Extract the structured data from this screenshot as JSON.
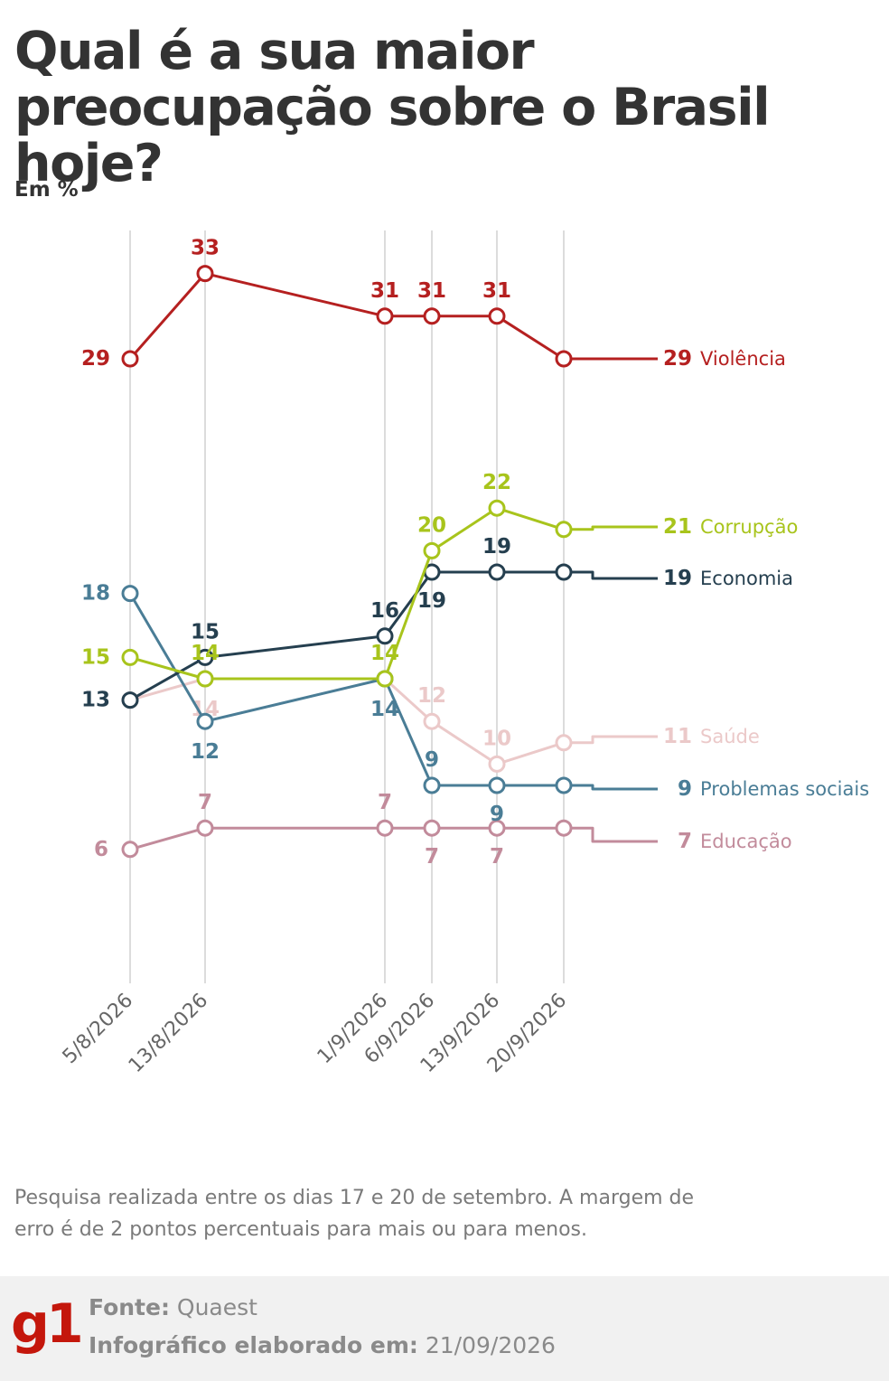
{
  "title": "Qual é a sua maior preocupação sobre o Brasil hoje?",
  "unit": "Em %",
  "note": "Pesquisa realizada entre os dias 17 e 20 de setembro. A margem de erro é de 2 pontos percentuais para mais ou para menos.",
  "footer": {
    "logo": "g1",
    "source_label": "Fonte:",
    "source": "Quaest",
    "made_label": "Infográfico elaborado em:",
    "made": "21/09/2026"
  },
  "chart_data": {
    "type": "line",
    "x": [
      "5/8/2026",
      "13/8/2026",
      "1/9/2026",
      "6/9/2026",
      "13/9/2026",
      "20/9/2026"
    ],
    "ylabel": "Em %",
    "ylim": [
      0,
      35
    ],
    "grid": "vertical lines at each survey date",
    "legend": "end-of-line labels on the right",
    "series": [
      {
        "name": "Violência",
        "values": [
          29,
          33,
          31,
          31,
          31,
          29
        ],
        "color": "#b52020"
      },
      {
        "name": "Corrupção",
        "values": [
          15,
          14,
          14,
          20,
          22,
          21
        ],
        "color": "#a8c41c"
      },
      {
        "name": "Economia",
        "values": [
          13,
          15,
          16,
          19,
          19,
          19
        ],
        "color": "#253f4f"
      },
      {
        "name": "Saúde",
        "values": [
          13,
          14,
          14,
          12,
          10,
          11
        ],
        "color": "#ebc9c9"
      },
      {
        "name": "Problemas sociais",
        "values": [
          18,
          12,
          14,
          9,
          9,
          9
        ],
        "color": "#4a7d96"
      },
      {
        "name": "Educação",
        "values": [
          6,
          7,
          7,
          7,
          7,
          7
        ],
        "color": "#c28b9b"
      }
    ]
  }
}
